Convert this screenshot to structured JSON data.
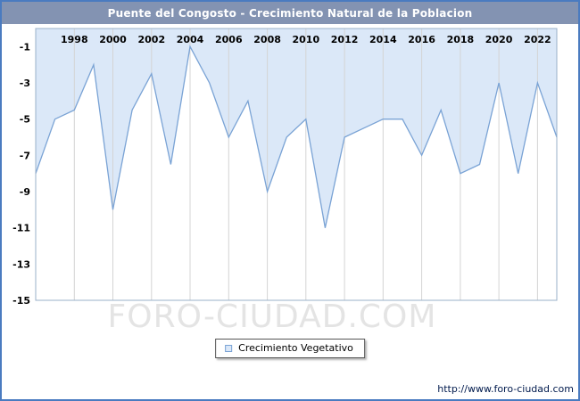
{
  "title": "Puente del Congosto - Crecimiento Natural de la Poblacion",
  "watermark": "FORO-CIUDAD.COM",
  "legend": {
    "label": "Crecimiento Vegetativo"
  },
  "footer": {
    "url": "http://www.foro-ciudad.com"
  },
  "colors": {
    "frame_border": "#4a7bc0",
    "title_bg": "#8393b2",
    "title_text": "#ffffff",
    "area_fill": "#dbe8f8",
    "line": "#7aa3d5",
    "grid": "#d4d4d4",
    "plot_border": "#9ab0c8",
    "watermark": "#e4e4e4",
    "tick_text": "#000000"
  },
  "chart_data": {
    "type": "area",
    "title": "Puente del Congosto - Crecimiento Natural de la Poblacion",
    "x": [
      1996,
      1997,
      1998,
      1999,
      2000,
      2001,
      2002,
      2003,
      2004,
      2005,
      2006,
      2007,
      2008,
      2009,
      2010,
      2011,
      2012,
      2013,
      2014,
      2015,
      2016,
      2017,
      2018,
      2019,
      2020,
      2021,
      2022,
      2023
    ],
    "series": [
      {
        "name": "Crecimiento Vegetativo",
        "values": [
          -8,
          -5,
          -4.5,
          -2,
          -10,
          -4.5,
          -2.5,
          -7.5,
          -1,
          -3,
          -6,
          -4,
          -9,
          -6,
          -5,
          -11,
          -6,
          -5.5,
          -5,
          -5,
          -7,
          -4.5,
          -8,
          -7.5,
          -3,
          -8,
          -3,
          -6
        ]
      }
    ],
    "ylim": [
      -15,
      0
    ],
    "yticks": [
      -1,
      -3,
      -5,
      -7,
      -9,
      -11,
      -13,
      -15
    ],
    "xticks": [
      1998,
      2000,
      2002,
      2004,
      2006,
      2008,
      2010,
      2012,
      2014,
      2016,
      2018,
      2020,
      2022
    ],
    "xlabel": "",
    "ylabel": "",
    "grid": "vertical",
    "legend_position": "bottom"
  }
}
